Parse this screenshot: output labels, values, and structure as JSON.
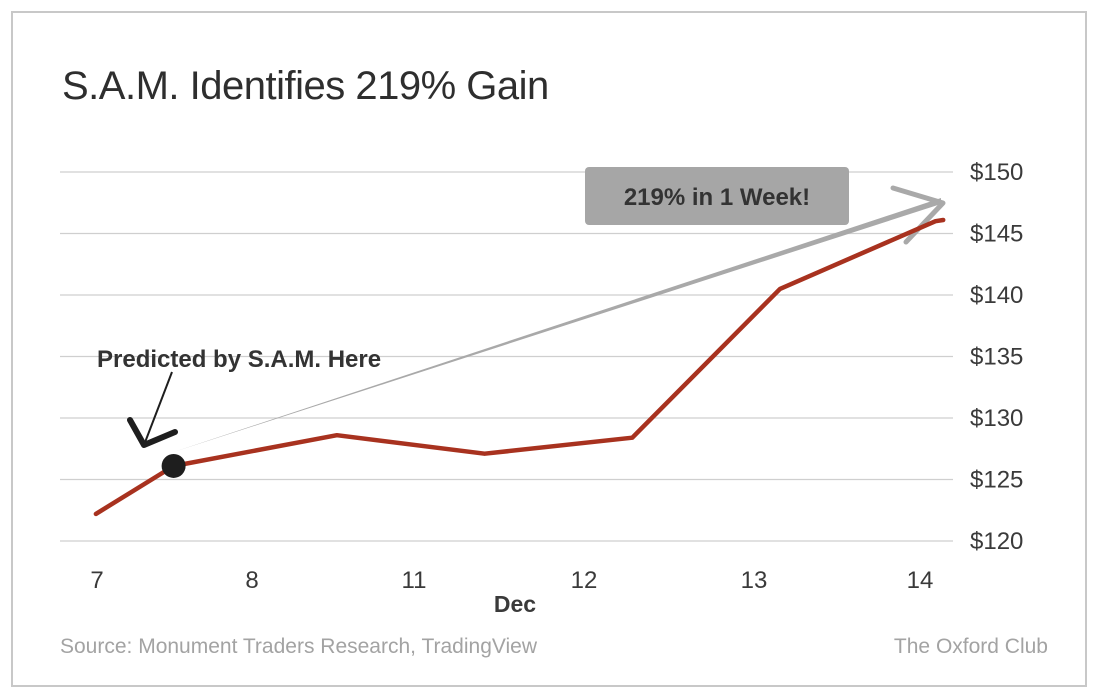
{
  "title": "S.A.M. Identifies 219% Gain",
  "source": "Source: Monument Traders Research, TradingView",
  "brand": "The Oxford Club",
  "colors": {
    "line": "#a8321f",
    "arrow": "#a9a9a9",
    "grid": "#cfcfcf",
    "callout_bg": "#a6a6a6",
    "marker": "#1e1e1e",
    "text": "#3a3a3a"
  },
  "chart_data": {
    "type": "line",
    "title": "S.A.M. Identifies 219% Gain",
    "xlabel": "Dec",
    "ylabel": "",
    "x_tick_labels": [
      "7",
      "8",
      "11",
      "12",
      "13",
      "14"
    ],
    "y_tick_labels": [
      "$150",
      "$145",
      "$140",
      "$135",
      "$130",
      "$125",
      "$120"
    ],
    "y_ticks": [
      150,
      145,
      140,
      135,
      130,
      125,
      120
    ],
    "ylim": [
      120,
      150
    ],
    "grid": "horizontal",
    "series": [
      {
        "points": [
          {
            "x": 6.75,
            "y": 122.2
          },
          {
            "x": 7.25,
            "y": 126.1
          },
          {
            "x": 8.3,
            "y": 128.6
          },
          {
            "x": 9.25,
            "y": 127.1
          },
          {
            "x": 10.2,
            "y": 128.4
          },
          {
            "x": 11.15,
            "y": 140.5
          },
          {
            "x": 12.15,
            "y": 146.0
          },
          {
            "x": 12.2,
            "y": 146.1
          }
        ]
      }
    ],
    "marker": {
      "x": 7.25,
      "y": 126.1
    },
    "annotations": {
      "prediction": "Predicted by S.A.M. Here",
      "callout": "219% in 1 Week!"
    }
  }
}
